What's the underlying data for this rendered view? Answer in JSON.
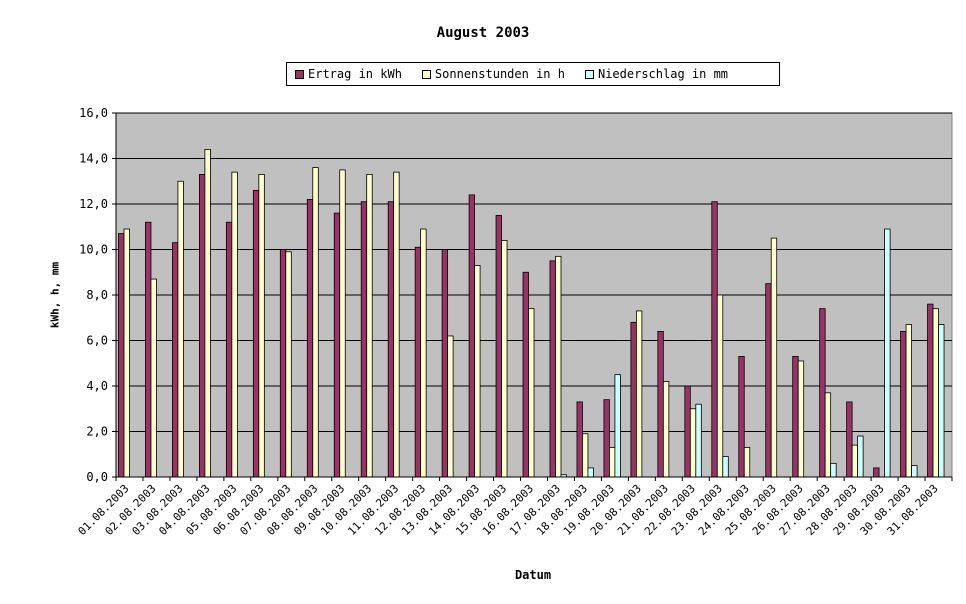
{
  "chart_data": {
    "type": "bar",
    "title": "August 2003",
    "xlabel": "Datum",
    "ylabel": "kWh, h, mm",
    "ylim": [
      0,
      16
    ],
    "yticks": [
      "0,0",
      "2,0",
      "4,0",
      "6,0",
      "8,0",
      "10,0",
      "12,0",
      "14,0",
      "16,0"
    ],
    "grid": true,
    "legend_position": "top",
    "plot_background": "#c0c0c0",
    "categories": [
      "01.08.2003",
      "02.08.2003",
      "03.08.2003",
      "04.08.2003",
      "05.08.2003",
      "06.08.2003",
      "07.08.2003",
      "08.08.2003",
      "09.08.2003",
      "10.08.2003",
      "11.08.2003",
      "12.08.2003",
      "13.08.2003",
      "14.08.2003",
      "15.08.2003",
      "16.08.2003",
      "17.08.2003",
      "18.08.2003",
      "19.08.2003",
      "20.08.2003",
      "21.08.2003",
      "22.08.2003",
      "23.08.2003",
      "24.08.2003",
      "25.08.2003",
      "26.08.2003",
      "27.08.2003",
      "28.08.2003",
      "29.08.2003",
      "30.08.2003",
      "31.08.2003"
    ],
    "series": [
      {
        "name": "Ertrag in kWh",
        "color": "#993366",
        "values": [
          10.7,
          11.2,
          10.3,
          13.3,
          11.2,
          12.6,
          10.0,
          12.2,
          11.6,
          12.1,
          12.1,
          10.1,
          10.0,
          12.4,
          11.5,
          9.0,
          9.5,
          3.3,
          3.4,
          6.8,
          6.4,
          4.0,
          12.1,
          5.3,
          8.5,
          5.3,
          7.4,
          3.3,
          0.4,
          6.4,
          7.6
        ]
      },
      {
        "name": "Sonnenstunden in h",
        "color": "#ffffcc",
        "values": [
          10.9,
          8.7,
          13.0,
          14.4,
          13.4,
          13.3,
          9.9,
          13.6,
          13.5,
          13.3,
          13.4,
          10.9,
          6.2,
          9.3,
          10.4,
          7.4,
          9.7,
          1.9,
          1.3,
          7.3,
          4.2,
          3.0,
          8.0,
          1.3,
          10.5,
          5.1,
          3.7,
          1.4,
          0,
          6.7,
          7.4
        ]
      },
      {
        "name": "Niederschlag in mm",
        "color": "#ccffff",
        "values": [
          0,
          0,
          0,
          0,
          0,
          0,
          0,
          0,
          0,
          0,
          0,
          0,
          0,
          0,
          0,
          0,
          0.1,
          0.4,
          4.5,
          0,
          0,
          3.2,
          0.9,
          0,
          0,
          0,
          0.6,
          1.8,
          10.9,
          0.5,
          6.7
        ]
      }
    ]
  }
}
